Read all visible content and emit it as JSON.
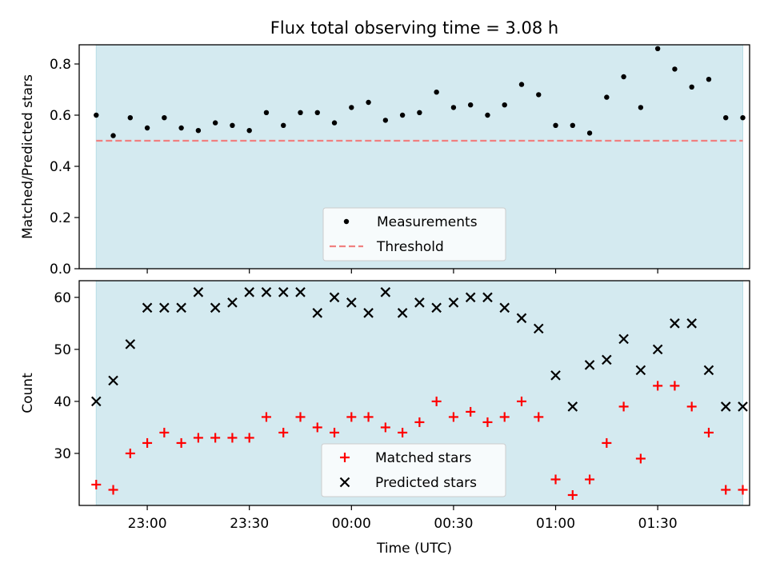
{
  "title": "Flux total observing time = 3.08 h",
  "colors": {
    "shade": "#d4eaf0",
    "shade_edge": "#b8dde6",
    "threshold": "#f08080",
    "matched": "#ff0000",
    "predicted": "#000000",
    "measurement": "#000000"
  },
  "chart_data": [
    {
      "type": "scatter",
      "panel": "top",
      "xlabel": "",
      "ylabel": "Matched/Predicted stars",
      "ylim": [
        0,
        0.875
      ],
      "yticks": [
        0.0,
        0.2,
        0.4,
        0.6,
        0.8
      ],
      "ytick_labels": [
        "0.0",
        "0.2",
        "0.4",
        "0.6",
        "0.8"
      ],
      "xlim": [
        "22:40",
        "01:57"
      ],
      "grid": false,
      "legend": "lower-center",
      "x": [
        "22:45",
        "22:50",
        "22:55",
        "23:00",
        "23:05",
        "23:10",
        "23:15",
        "23:20",
        "23:25",
        "23:30",
        "23:35",
        "23:40",
        "23:45",
        "23:50",
        "23:55",
        "00:00",
        "00:05",
        "00:10",
        "00:15",
        "00:20",
        "00:25",
        "00:30",
        "00:35",
        "00:40",
        "00:45",
        "00:50",
        "00:55",
        "01:00",
        "01:05",
        "01:10",
        "01:15",
        "01:20",
        "01:25",
        "01:30",
        "01:35",
        "01:40",
        "01:45",
        "01:50",
        "01:55"
      ],
      "series": [
        {
          "name": "Measurements",
          "marker": "dot",
          "values": [
            0.6,
            0.52,
            0.59,
            0.55,
            0.59,
            0.55,
            0.54,
            0.57,
            0.56,
            0.54,
            0.61,
            0.56,
            0.61,
            0.61,
            0.57,
            0.63,
            0.65,
            0.58,
            0.6,
            0.61,
            0.69,
            0.63,
            0.64,
            0.6,
            0.64,
            0.72,
            0.68,
            0.56,
            0.56,
            0.53,
            0.67,
            0.75,
            0.63,
            0.86,
            0.78,
            0.71,
            0.74,
            0.59,
            0.59
          ]
        },
        {
          "name": "Threshold",
          "marker": "dashed-line",
          "values": [
            0.5
          ]
        }
      ]
    },
    {
      "type": "scatter",
      "panel": "bottom",
      "xlabel": "Time (UTC)",
      "ylabel": "Count",
      "ylim": [
        20,
        63.2
      ],
      "yticks": [
        30,
        40,
        50,
        60
      ],
      "ytick_labels": [
        "30",
        "40",
        "50",
        "60"
      ],
      "xlim": [
        "22:40",
        "01:57"
      ],
      "xticks": [
        "23:00",
        "23:30",
        "00:00",
        "00:30",
        "01:00",
        "01:30"
      ],
      "grid": false,
      "legend": "lower-center",
      "x": [
        "22:45",
        "22:50",
        "22:55",
        "23:00",
        "23:05",
        "23:10",
        "23:15",
        "23:20",
        "23:25",
        "23:30",
        "23:35",
        "23:40",
        "23:45",
        "23:50",
        "23:55",
        "00:00",
        "00:05",
        "00:10",
        "00:15",
        "00:20",
        "00:25",
        "00:30",
        "00:35",
        "00:40",
        "00:45",
        "00:50",
        "00:55",
        "01:00",
        "01:05",
        "01:10",
        "01:15",
        "01:20",
        "01:25",
        "01:30",
        "01:35",
        "01:40",
        "01:45",
        "01:50",
        "01:55"
      ],
      "series": [
        {
          "name": "Matched stars",
          "marker": "plus",
          "values": [
            24,
            23,
            30,
            32,
            34,
            32,
            33,
            33,
            33,
            33,
            37,
            34,
            37,
            35,
            34,
            37,
            37,
            35,
            34,
            36,
            40,
            37,
            38,
            36,
            37,
            40,
            37,
            25,
            22,
            25,
            32,
            39,
            29,
            43,
            43,
            39,
            34,
            23,
            23
          ]
        },
        {
          "name": "Predicted stars",
          "marker": "x",
          "values": [
            40,
            44,
            51,
            58,
            58,
            58,
            61,
            58,
            59,
            61,
            61,
            61,
            61,
            57,
            60,
            59,
            57,
            61,
            57,
            59,
            58,
            59,
            60,
            60,
            58,
            56,
            54,
            45,
            39,
            47,
            48,
            52,
            46,
            50,
            55,
            55,
            46,
            39,
            39
          ]
        }
      ]
    }
  ]
}
